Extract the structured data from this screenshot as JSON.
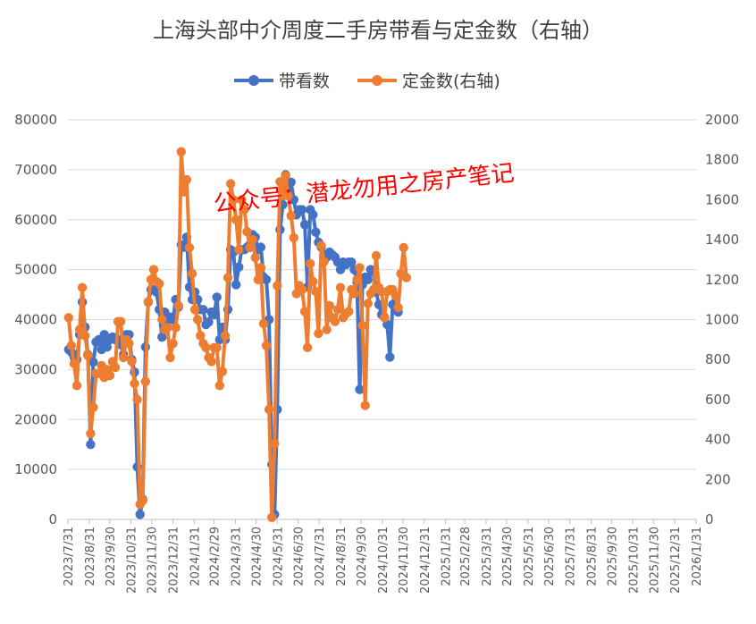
{
  "chart_data": {
    "type": "line",
    "title": "上海头部中介周度二手房带看与定金数（右轴）",
    "watermark": "公众号：潜龙勿用之房产笔记",
    "left_axis": {
      "min": 0,
      "max": 80000,
      "step": 10000,
      "ticks": [
        "0",
        "10000",
        "20000",
        "30000",
        "40000",
        "50000",
        "60000",
        "70000",
        "80000"
      ]
    },
    "right_axis": {
      "min": 0,
      "max": 2000,
      "step": 200,
      "ticks": [
        "0",
        "200",
        "400",
        "600",
        "800",
        "1000",
        "1200",
        "1400",
        "1600",
        "1800",
        "2000"
      ]
    },
    "x_axis": {
      "start": "2023/7/31",
      "end": "2026/1/31",
      "tick_labels": [
        "2023/7/31",
        "2023/8/31",
        "2023/9/30",
        "2023/10/31",
        "2023/11/30",
        "2023/12/31",
        "2024/1/31",
        "2024/2/29",
        "2024/3/31",
        "2024/4/30",
        "2024/5/31",
        "2024/6/30",
        "2024/7/31",
        "2024/8/31",
        "2024/9/30",
        "2024/10/31",
        "2024/11/30",
        "2024/12/31",
        "2025/1/31",
        "2025/2/28",
        "2025/3/31",
        "2025/4/30",
        "2025/5/31",
        "2025/6/30",
        "2025/7/31",
        "2025/8/31",
        "2025/9/30",
        "2025/10/31",
        "2025/11/30",
        "2025/12/31",
        "2026/1/31"
      ]
    },
    "grid": "horizontal",
    "legend_position": "top",
    "series": [
      {
        "name": "带看数",
        "axis": "left",
        "color": "#4472C4",
        "points": [
          [
            "2023/8/1",
            34000
          ],
          [
            "2023/8/5",
            33500
          ],
          [
            "2023/8/9",
            32500
          ],
          [
            "2023/8/13",
            32000
          ],
          [
            "2023/8/17",
            37000
          ],
          [
            "2023/8/21",
            43500
          ],
          [
            "2023/8/25",
            38500
          ],
          [
            "2023/8/29",
            33000
          ],
          [
            "2023/9/2",
            15000
          ],
          [
            "2023/9/6",
            31500
          ],
          [
            "2023/9/10",
            35500
          ],
          [
            "2023/9/14",
            36000
          ],
          [
            "2023/9/18",
            34000
          ],
          [
            "2023/9/22",
            37000
          ],
          [
            "2023/9/26",
            34500
          ],
          [
            "2023/9/30",
            36000
          ],
          [
            "2023/10/4",
            36500
          ],
          [
            "2023/10/8",
            36000
          ],
          [
            "2023/10/12",
            36000
          ],
          [
            "2023/10/16",
            35000
          ],
          [
            "2023/10/20",
            33000
          ],
          [
            "2023/10/24",
            37000
          ],
          [
            "2023/10/28",
            37000
          ],
          [
            "2023/11/1",
            32000
          ],
          [
            "2023/11/5",
            29500
          ],
          [
            "2023/11/9",
            10500
          ],
          [
            "2023/11/13",
            1000
          ],
          [
            "2023/11/17",
            4000
          ],
          [
            "2023/11/21",
            34500
          ],
          [
            "2023/11/25",
            43500
          ],
          [
            "2023/11/29",
            46000
          ],
          [
            "2023/12/3",
            46000
          ],
          [
            "2023/12/7",
            45500
          ],
          [
            "2023/12/11",
            42000
          ],
          [
            "2023/12/15",
            36500
          ],
          [
            "2023/12/19",
            41500
          ],
          [
            "2023/12/23",
            38500
          ],
          [
            "2023/12/27",
            40500
          ],
          [
            "2023/12/31",
            40000
          ],
          [
            "2024/1/4",
            44000
          ],
          [
            "2024/1/8",
            42500
          ],
          [
            "2024/1/12",
            55000
          ],
          [
            "2024/1/16",
            54500
          ],
          [
            "2024/1/20",
            56500
          ],
          [
            "2024/1/24",
            46500
          ],
          [
            "2024/1/28",
            44000
          ],
          [
            "2024/2/1",
            45500
          ],
          [
            "2024/2/5",
            44000
          ],
          [
            "2024/2/9",
            42000
          ],
          [
            "2024/2/13",
            42000
          ],
          [
            "2024/2/17",
            39000
          ],
          [
            "2024/2/21",
            39500
          ],
          [
            "2024/2/25",
            41500
          ],
          [
            "2024/2/29",
            41000
          ],
          [
            "2024/3/4",
            44500
          ],
          [
            "2024/3/8",
            36000
          ],
          [
            "2024/3/12",
            38500
          ],
          [
            "2024/3/16",
            36000
          ],
          [
            "2024/3/20",
            42000
          ],
          [
            "2024/3/24",
            54000
          ],
          [
            "2024/3/28",
            53500
          ],
          [
            "2024/4/1",
            47000
          ],
          [
            "2024/4/5",
            50500
          ],
          [
            "2024/4/9",
            54000
          ],
          [
            "2024/4/13",
            54000
          ],
          [
            "2024/4/17",
            54500
          ],
          [
            "2024/4/21",
            55000
          ],
          [
            "2024/4/25",
            57000
          ],
          [
            "2024/4/29",
            56500
          ],
          [
            "2024/5/3",
            54000
          ],
          [
            "2024/5/7",
            54500
          ],
          [
            "2024/5/11",
            48500
          ],
          [
            "2024/5/15",
            48000
          ],
          [
            "2024/5/19",
            40000
          ],
          [
            "2024/5/23",
            11000
          ],
          [
            "2024/5/27",
            1000
          ],
          [
            "2024/5/31",
            22000
          ],
          [
            "2024/6/4",
            58000
          ],
          [
            "2024/6/8",
            63000
          ],
          [
            "2024/6/12",
            69000
          ],
          [
            "2024/6/16",
            65500
          ],
          [
            "2024/6/20",
            67500
          ],
          [
            "2024/6/24",
            64000
          ],
          [
            "2024/6/28",
            61000
          ],
          [
            "2024/7/2",
            62000
          ],
          [
            "2024/7/6",
            62000
          ],
          [
            "2024/7/10",
            59000
          ],
          [
            "2024/7/14",
            46500
          ],
          [
            "2024/7/18",
            62000
          ],
          [
            "2024/7/22",
            61000
          ],
          [
            "2024/7/26",
            57500
          ],
          [
            "2024/7/30",
            55500
          ],
          [
            "2024/8/3",
            54500
          ],
          [
            "2024/8/7",
            53000
          ],
          [
            "2024/8/11",
            52500
          ],
          [
            "2024/8/15",
            53500
          ],
          [
            "2024/8/19",
            53000
          ],
          [
            "2024/8/23",
            52500
          ],
          [
            "2024/8/27",
            51500
          ],
          [
            "2024/8/31",
            50000
          ],
          [
            "2024/9/4",
            51500
          ],
          [
            "2024/9/8",
            51000
          ],
          [
            "2024/9/12",
            51500
          ],
          [
            "2024/9/16",
            51500
          ],
          [
            "2024/9/20",
            50000
          ],
          [
            "2024/9/24",
            47500
          ],
          [
            "2024/9/28",
            26000
          ],
          [
            "2024/10/2",
            47000
          ],
          [
            "2024/10/6",
            48500
          ],
          [
            "2024/10/10",
            48000
          ],
          [
            "2024/10/14",
            50000
          ],
          [
            "2024/10/18",
            49500
          ],
          [
            "2024/10/22",
            45500
          ],
          [
            "2024/10/26",
            43000
          ],
          [
            "2024/10/30",
            41000
          ],
          [
            "2024/11/3",
            40500
          ],
          [
            "2024/11/7",
            39000
          ],
          [
            "2024/11/11",
            32500
          ],
          [
            "2024/11/15",
            43000
          ],
          [
            "2024/11/19",
            43500
          ],
          [
            "2024/11/23",
            41500
          ]
        ]
      },
      {
        "name": "定金数(右轴)",
        "axis": "right",
        "color": "#ED7D31",
        "points": [
          [
            "2023/8/1",
            1010
          ],
          [
            "2023/8/5",
            870
          ],
          [
            "2023/8/9",
            780
          ],
          [
            "2023/8/13",
            670
          ],
          [
            "2023/8/17",
            950
          ],
          [
            "2023/8/21",
            1160
          ],
          [
            "2023/8/25",
            920
          ],
          [
            "2023/8/29",
            820
          ],
          [
            "2023/9/2",
            430
          ],
          [
            "2023/9/6",
            560
          ],
          [
            "2023/9/10",
            730
          ],
          [
            "2023/9/14",
            730
          ],
          [
            "2023/9/18",
            770
          ],
          [
            "2023/9/22",
            710
          ],
          [
            "2023/9/26",
            750
          ],
          [
            "2023/9/30",
            720
          ],
          [
            "2023/10/4",
            790
          ],
          [
            "2023/10/8",
            760
          ],
          [
            "2023/10/12",
            990
          ],
          [
            "2023/10/16",
            990
          ],
          [
            "2023/10/20",
            810
          ],
          [
            "2023/10/24",
            900
          ],
          [
            "2023/10/28",
            880
          ],
          [
            "2023/11/1",
            790
          ],
          [
            "2023/11/5",
            680
          ],
          [
            "2023/11/9",
            600
          ],
          [
            "2023/11/13",
            75
          ],
          [
            "2023/11/17",
            95
          ],
          [
            "2023/11/21",
            690
          ],
          [
            "2023/11/25",
            1090
          ],
          [
            "2023/11/29",
            1200
          ],
          [
            "2023/12/3",
            1250
          ],
          [
            "2023/12/7",
            1190
          ],
          [
            "2023/12/11",
            1180
          ],
          [
            "2023/12/15",
            1000
          ],
          [
            "2023/12/19",
            950
          ],
          [
            "2023/12/23",
            960
          ],
          [
            "2023/12/27",
            810
          ],
          [
            "2023/12/31",
            880
          ],
          [
            "2024/1/4",
            960
          ],
          [
            "2024/1/8",
            1070
          ],
          [
            "2024/1/12",
            1840
          ],
          [
            "2024/1/16",
            1640
          ],
          [
            "2024/1/20",
            1700
          ],
          [
            "2024/1/24",
            1360
          ],
          [
            "2024/1/28",
            1230
          ],
          [
            "2024/2/1",
            1050
          ],
          [
            "2024/2/5",
            1000
          ],
          [
            "2024/2/9",
            920
          ],
          [
            "2024/2/13",
            880
          ],
          [
            "2024/2/17",
            860
          ],
          [
            "2024/2/21",
            810
          ],
          [
            "2024/2/25",
            790
          ],
          [
            "2024/2/29",
            860
          ],
          [
            "2024/3/4",
            860
          ],
          [
            "2024/3/8",
            670
          ],
          [
            "2024/3/12",
            740
          ],
          [
            "2024/3/16",
            920
          ],
          [
            "2024/3/20",
            1210
          ],
          [
            "2024/3/24",
            1680
          ],
          [
            "2024/3/28",
            1600
          ],
          [
            "2024/4/1",
            1500
          ],
          [
            "2024/4/5",
            1350
          ],
          [
            "2024/4/9",
            1600
          ],
          [
            "2024/4/13",
            1550
          ],
          [
            "2024/4/17",
            1440
          ],
          [
            "2024/4/21",
            1360
          ],
          [
            "2024/4/25",
            1400
          ],
          [
            "2024/4/29",
            1310
          ],
          [
            "2024/5/3",
            1200
          ],
          [
            "2024/5/7",
            1260
          ],
          [
            "2024/5/11",
            980
          ],
          [
            "2024/5/15",
            870
          ],
          [
            "2024/5/19",
            550
          ],
          [
            "2024/5/23",
            10
          ],
          [
            "2024/5/27",
            380
          ],
          [
            "2024/5/31",
            1170
          ],
          [
            "2024/6/4",
            1690
          ],
          [
            "2024/6/8",
            1620
          ],
          [
            "2024/6/12",
            1720
          ],
          [
            "2024/6/16",
            1620
          ],
          [
            "2024/6/20",
            1520
          ],
          [
            "2024/6/24",
            1410
          ],
          [
            "2024/6/28",
            1130
          ],
          [
            "2024/7/2",
            1170
          ],
          [
            "2024/7/6",
            1150
          ],
          [
            "2024/7/10",
            1040
          ],
          [
            "2024/7/14",
            860
          ],
          [
            "2024/7/18",
            1280
          ],
          [
            "2024/7/22",
            1190
          ],
          [
            "2024/7/26",
            1140
          ],
          [
            "2024/7/30",
            930
          ],
          [
            "2024/8/3",
            1370
          ],
          [
            "2024/8/7",
            1290
          ],
          [
            "2024/8/11",
            950
          ],
          [
            "2024/8/15",
            1070
          ],
          [
            "2024/8/19",
            1010
          ],
          [
            "2024/8/23",
            990
          ],
          [
            "2024/8/27",
            1050
          ],
          [
            "2024/8/31",
            1160
          ],
          [
            "2024/9/4",
            1010
          ],
          [
            "2024/9/8",
            1030
          ],
          [
            "2024/9/12",
            1040
          ],
          [
            "2024/9/16",
            1150
          ],
          [
            "2024/9/20",
            1130
          ],
          [
            "2024/9/24",
            1200
          ],
          [
            "2024/9/28",
            1260
          ],
          [
            "2024/10/2",
            970
          ],
          [
            "2024/10/6",
            570
          ],
          [
            "2024/10/10",
            1080
          ],
          [
            "2024/10/14",
            1130
          ],
          [
            "2024/10/18",
            1150
          ],
          [
            "2024/10/22",
            1320
          ],
          [
            "2024/10/26",
            1160
          ],
          [
            "2024/10/30",
            1140
          ],
          [
            "2024/11/3",
            1010
          ],
          [
            "2024/11/7",
            1140
          ],
          [
            "2024/11/11",
            1150
          ],
          [
            "2024/11/15",
            1150
          ],
          [
            "2024/11/19",
            1120
          ],
          [
            "2024/11/23",
            1060
          ],
          [
            "2024/11/27",
            1230
          ],
          [
            "2024/12/1",
            1360
          ],
          [
            "2024/12/5",
            1210
          ]
        ]
      }
    ]
  }
}
